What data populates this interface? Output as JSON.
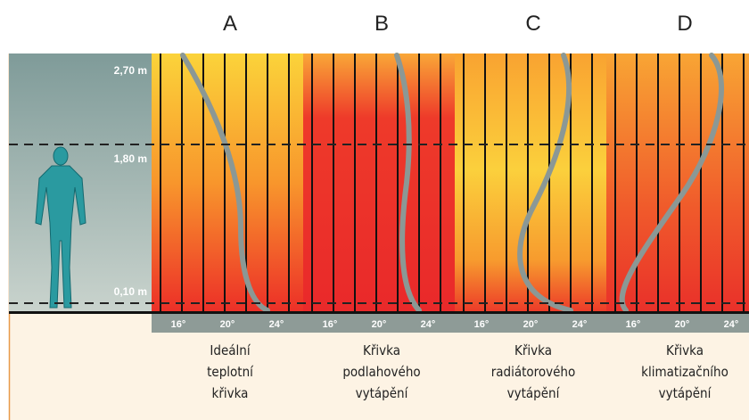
{
  "columns": [
    {
      "letter": "A",
      "caption": [
        "Ideální",
        "teplotní",
        "křivka"
      ]
    },
    {
      "letter": "B",
      "caption": [
        "Křivka",
        "podlahového",
        "vytápění"
      ]
    },
    {
      "letter": "C",
      "caption": [
        "Křivka",
        "radiátorového",
        "vytápění"
      ]
    },
    {
      "letter": "D",
      "caption": [
        "Křivka",
        "klimatizačního",
        "vytápění"
      ]
    }
  ],
  "height_labels": [
    "2,70 m",
    "1,80 m",
    "0,10 m"
  ],
  "temperature_labels": [
    "16°",
    "20°",
    "24°"
  ]
}
